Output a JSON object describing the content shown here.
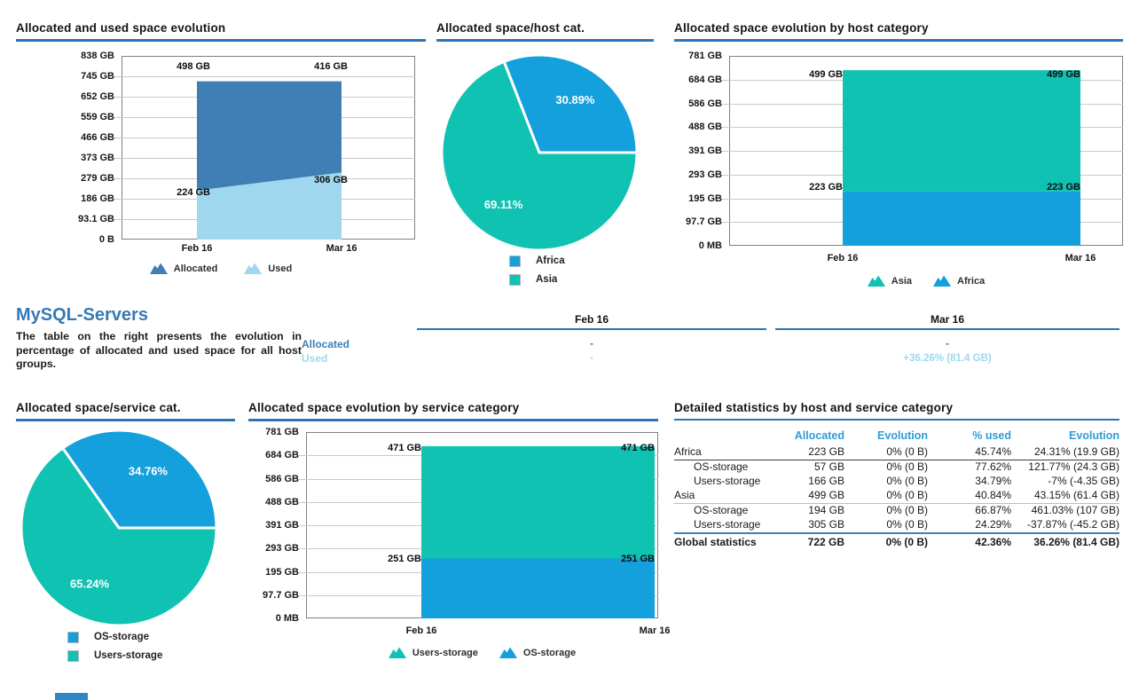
{
  "report": {
    "heading": "MySQL-Servers",
    "description": "The table on the right presents the evolution in percentage of allocated and used space for all host groups."
  },
  "colors": {
    "steel_blue": "#3f7fb5",
    "light_blue": "#9fd7ee",
    "teal": "#10c2b2",
    "bright_blue": "#14a0dc",
    "title_underline": "#2e74b5",
    "table_header_blue": "#2f9cd7",
    "heading_blue": "#3879b6"
  },
  "chart_data": [
    {
      "id": "allocated-used-evolution",
      "type": "area",
      "title": "Allocated and used space evolution",
      "x": [
        "Feb 16",
        "Mar 16"
      ],
      "stacked": true,
      "ylim": [
        0,
        838
      ],
      "y_ticks": [
        "838 GB",
        "745 GB",
        "652 GB",
        "559 GB",
        "466 GB",
        "373 GB",
        "279 GB",
        "186 GB",
        "93.1 GB",
        "0 B"
      ],
      "series": [
        {
          "name": "Used",
          "color": "light_blue",
          "values": [
            224,
            306
          ],
          "point_labels": [
            "224 GB",
            "306 GB"
          ]
        },
        {
          "name": "Allocated",
          "color": "steel_blue",
          "values": [
            498,
            416
          ],
          "point_labels": [
            "498 GB",
            "416 GB"
          ]
        }
      ],
      "legend": [
        {
          "name": "Allocated",
          "color": "steel_blue"
        },
        {
          "name": "Used",
          "color": "light_blue"
        }
      ]
    },
    {
      "id": "allocated-space-host-category",
      "type": "pie",
      "title": "Allocated space/host cat.",
      "slices": [
        {
          "name": "Africa",
          "pct": 30.89,
          "label": "30.89%",
          "color": "bright_blue"
        },
        {
          "name": "Asia",
          "pct": 69.11,
          "label": "69.11%",
          "color": "teal"
        }
      ]
    },
    {
      "id": "allocated-evolution-host-category",
      "type": "area",
      "title": "Allocated space evolution by host category",
      "x": [
        "Feb 16",
        "Mar 16"
      ],
      "stacked": true,
      "ylim": [
        0,
        781
      ],
      "y_ticks": [
        "781 GB",
        "684 GB",
        "586 GB",
        "488 GB",
        "391 GB",
        "293 GB",
        "195 GB",
        "97.7 GB",
        "0 MB"
      ],
      "series": [
        {
          "name": "Africa",
          "color": "bright_blue",
          "values": [
            223,
            223
          ],
          "point_labels": [
            "223 GB",
            "223 GB"
          ]
        },
        {
          "name": "Asia",
          "color": "teal",
          "values": [
            499,
            499
          ],
          "point_labels": [
            "499 GB",
            "499 GB"
          ]
        }
      ],
      "legend": [
        {
          "name": "Asia",
          "color": "teal"
        },
        {
          "name": "Africa",
          "color": "bright_blue"
        }
      ]
    },
    {
      "id": "allocated-space-service-category",
      "type": "pie",
      "title": "Allocated space/service cat.",
      "slices": [
        {
          "name": "OS-storage",
          "pct": 34.76,
          "label": "34.76%",
          "color": "bright_blue"
        },
        {
          "name": "Users-storage",
          "pct": 65.24,
          "label": "65.24%",
          "color": "teal"
        }
      ]
    },
    {
      "id": "allocated-evolution-service-category",
      "type": "area",
      "title": "Allocated space evolution by service category",
      "x": [
        "Feb 16",
        "Mar 16"
      ],
      "stacked": true,
      "ylim": [
        0,
        781
      ],
      "y_ticks": [
        "781 GB",
        "684 GB",
        "586 GB",
        "488 GB",
        "391 GB",
        "293 GB",
        "195 GB",
        "97.7 GB",
        "0 MB"
      ],
      "series": [
        {
          "name": "OS-storage",
          "color": "bright_blue",
          "values": [
            251,
            251
          ],
          "point_labels": [
            "251 GB",
            "251 GB"
          ]
        },
        {
          "name": "Users-storage",
          "color": "teal",
          "values": [
            471,
            471
          ],
          "point_labels": [
            "471 GB",
            "471 GB"
          ]
        }
      ],
      "legend": [
        {
          "name": "Users-storage",
          "color": "teal"
        },
        {
          "name": "OS-storage",
          "color": "bright_blue"
        }
      ]
    }
  ],
  "summary_table": {
    "columns": [
      "Feb 16",
      "Mar 16"
    ],
    "rows": [
      {
        "label": "Allocated",
        "values": [
          "-",
          "-"
        ]
      },
      {
        "label": "Used",
        "values": [
          "-",
          "+36.26% (81.4 GB)"
        ]
      }
    ]
  },
  "details_table": {
    "title": "Detailed statistics by host and service category",
    "headers": [
      "Allocated",
      "Evolution",
      "% used",
      "Evolution"
    ],
    "rows": [
      {
        "kind": "group",
        "name": "Africa",
        "allocated": "223 GB",
        "evolution": "0% (0 B)",
        "used": "45.74%",
        "evolution2": "24.31% (19.9 GB)"
      },
      {
        "kind": "child",
        "name": "OS-storage",
        "allocated": "57 GB",
        "evolution": "0% (0 B)",
        "used": "77.62%",
        "evolution2": "121.77% (24.3 GB)"
      },
      {
        "kind": "child",
        "name": "Users-storage",
        "allocated": "166 GB",
        "evolution": "0% (0 B)",
        "used": "34.79%",
        "evolution2": "-7% (-4.35 GB)"
      },
      {
        "kind": "group",
        "name": "Asia",
        "allocated": "499 GB",
        "evolution": "0% (0 B)",
        "used": "40.84%",
        "evolution2": "43.15% (61.4 GB)"
      },
      {
        "kind": "child",
        "name": "OS-storage",
        "allocated": "194 GB",
        "evolution": "0% (0 B)",
        "used": "66.87%",
        "evolution2": "461.03% (107 GB)"
      },
      {
        "kind": "child",
        "name": "Users-storage",
        "allocated": "305 GB",
        "evolution": "0% (0 B)",
        "used": "24.29%",
        "evolution2": "-37.87% (-45.2 GB)"
      },
      {
        "kind": "total",
        "name": "Global statistics",
        "allocated": "722 GB",
        "evolution": "0% (0 B)",
        "used": "42.36%",
        "evolution2": "36.26% (81.4 GB)"
      }
    ]
  }
}
